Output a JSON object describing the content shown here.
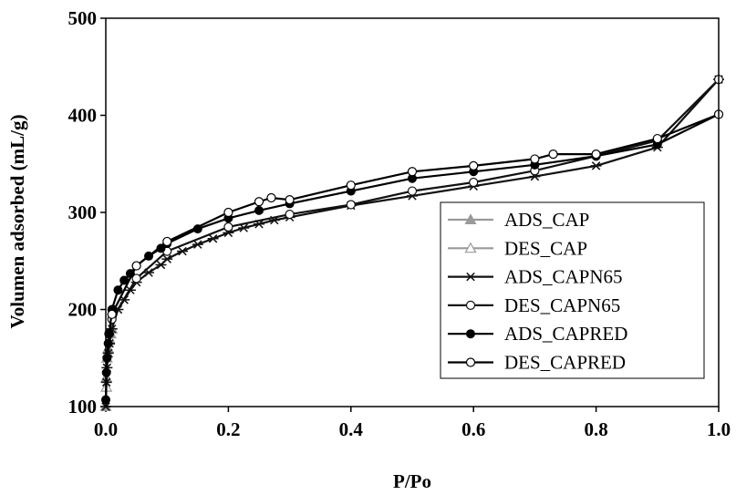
{
  "chart_data": {
    "type": "line",
    "title": "",
    "xlabel": "P/Po",
    "ylabel": "Volumen adsorbed (mL/g)",
    "xlim": [
      0.0,
      1.0
    ],
    "ylim": [
      100,
      500
    ],
    "xticks": [
      "0.0",
      "0.2",
      "0.4",
      "0.6",
      "0.8",
      "1.0"
    ],
    "yticks": [
      "100",
      "200",
      "300",
      "400",
      "500"
    ],
    "grid": false,
    "legend_position": "lower-right",
    "series": [
      {
        "name": "ADS_CAP",
        "marker": "filled-triangle",
        "color": "#9a9a9a",
        "x": [
          0.0,
          0.001,
          0.002,
          0.004,
          0.006,
          0.008,
          0.01
        ],
        "y": [
          100,
          130,
          150,
          160,
          168,
          175,
          180
        ]
      },
      {
        "name": "DES_CAP",
        "marker": "open-triangle",
        "color": "#9a9a9a",
        "x": [
          0.01,
          0.006,
          0.003,
          0.001
        ],
        "y": [
          180,
          170,
          155,
          120
        ]
      },
      {
        "name": "ADS_CAPN65",
        "marker": "asterisk",
        "color": "#111111",
        "x": [
          0.0,
          0.001,
          0.002,
          0.004,
          0.006,
          0.01,
          0.02,
          0.03,
          0.04,
          0.05,
          0.07,
          0.09,
          0.1,
          0.125,
          0.15,
          0.175,
          0.2,
          0.225,
          0.25,
          0.275,
          0.3,
          0.4,
          0.5,
          0.6,
          0.7,
          0.8,
          0.9,
          1.0
        ],
        "y": [
          100,
          125,
          140,
          155,
          165,
          180,
          200,
          210,
          220,
          228,
          238,
          246,
          252,
          260,
          267,
          273,
          279,
          284,
          288,
          292,
          295,
          307,
          317,
          327,
          337,
          348,
          367,
          437
        ]
      },
      {
        "name": "DES_CAPN65",
        "marker": "open-circle",
        "color": "#111111",
        "x": [
          1.0,
          0.9,
          0.8,
          0.7,
          0.6,
          0.5,
          0.4,
          0.3,
          0.2,
          0.1,
          0.05,
          0.01,
          0.005
        ],
        "y": [
          437,
          374,
          358,
          343,
          331,
          322,
          308,
          298,
          285,
          260,
          232,
          190,
          175
        ]
      },
      {
        "name": "ADS_CAPRED",
        "marker": "filled-circle",
        "color": "#000000",
        "x": [
          0.0,
          0.001,
          0.002,
          0.004,
          0.006,
          0.01,
          0.02,
          0.03,
          0.04,
          0.05,
          0.07,
          0.09,
          0.1,
          0.15,
          0.2,
          0.25,
          0.3,
          0.4,
          0.5,
          0.6,
          0.7,
          0.8,
          0.9,
          1.0
        ],
        "y": [
          107,
          135,
          150,
          165,
          175,
          200,
          220,
          230,
          237,
          245,
          255,
          263,
          268,
          283,
          294,
          302,
          309,
          322,
          335,
          342,
          349,
          358,
          370,
          401
        ]
      },
      {
        "name": "DES_CAPRED",
        "marker": "open-circle",
        "color": "#000000",
        "x": [
          1.0,
          0.9,
          0.8,
          0.73,
          0.7,
          0.6,
          0.5,
          0.4,
          0.3,
          0.27,
          0.25,
          0.2,
          0.1,
          0.05,
          0.01
        ],
        "y": [
          401,
          376,
          360,
          360,
          355,
          348,
          342,
          328,
          313,
          315,
          311,
          300,
          270,
          245,
          195
        ]
      }
    ]
  }
}
